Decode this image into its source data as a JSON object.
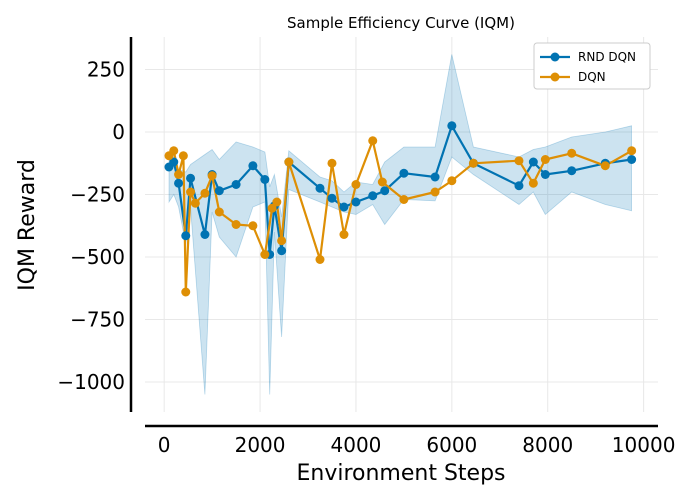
{
  "chart_data": {
    "type": "line",
    "title": "Sample Efficiency Curve (IQM)",
    "xlabel": "Environment Steps",
    "ylabel": "IQM Reward",
    "xlim": [
      -400,
      10300
    ],
    "ylim": [
      -1120,
      380
    ],
    "xticks": [
      0,
      2000,
      4000,
      6000,
      8000,
      10000
    ],
    "yticks": [
      250,
      0,
      -250,
      -500,
      -750,
      -1000
    ],
    "xtick_labels": [
      "0",
      "2000",
      "4000",
      "6000",
      "8000",
      "10000"
    ],
    "ytick_labels": [
      "250",
      "0",
      "−250",
      "−500",
      "−750",
      "−1000"
    ],
    "grid": true,
    "legend_position": "top-right",
    "series": [
      {
        "name": "RND DQN",
        "color": "#0173b2",
        "x": [
          100,
          200,
          300,
          450,
          550,
          850,
          1000,
          1150,
          1500,
          1850,
          2100,
          2200,
          2300,
          2450,
          2600,
          3250,
          3500,
          3750,
          4000,
          4350,
          4600,
          5000,
          5650,
          6000,
          6450,
          7400,
          7700,
          7950,
          8500,
          9200,
          9750
        ],
        "y": [
          -140,
          -120,
          -205,
          -415,
          -185,
          -410,
          -170,
          -235,
          -210,
          -135,
          -190,
          -490,
          -295,
          -475,
          -120,
          -225,
          -265,
          -300,
          -280,
          -255,
          -235,
          -165,
          -180,
          25,
          -125,
          -215,
          -120,
          -170,
          -155,
          -125,
          -110
        ],
        "ci_upper": [
          -90,
          -90,
          -150,
          -160,
          -130,
          -90,
          -70,
          -110,
          -40,
          -60,
          -80,
          -220,
          -170,
          -340,
          -75,
          -180,
          -195,
          -240,
          -200,
          -210,
          -120,
          -60,
          -60,
          310,
          -60,
          -100,
          -70,
          -60,
          -20,
          0,
          25
        ],
        "ci_lower": [
          -280,
          -250,
          -300,
          -450,
          -300,
          -1050,
          -320,
          -420,
          -500,
          -300,
          -280,
          -1050,
          -400,
          -820,
          -230,
          -280,
          -300,
          -320,
          -330,
          -290,
          -370,
          -270,
          -275,
          -100,
          -170,
          -290,
          -240,
          -330,
          -240,
          -290,
          -315
        ]
      },
      {
        "name": "DQN",
        "color": "#de8f05",
        "x": [
          100,
          200,
          300,
          400,
          450,
          550,
          650,
          850,
          1000,
          1150,
          1500,
          1850,
          2100,
          2250,
          2350,
          2450,
          2600,
          3250,
          3500,
          3750,
          4000,
          4350,
          4550,
          5000,
          5650,
          6000,
          6450,
          7400,
          7700,
          7950,
          8500,
          9200,
          9750
        ],
        "y": [
          -95,
          -75,
          -170,
          -95,
          -640,
          -240,
          -285,
          -245,
          -175,
          -320,
          -370,
          -375,
          -490,
          -305,
          -280,
          -435,
          -120,
          -510,
          -125,
          -410,
          -210,
          -35,
          -200,
          -270,
          -240,
          -195,
          -125,
          -115,
          -205,
          -110,
          -85,
          -135,
          -75
        ]
      }
    ]
  }
}
